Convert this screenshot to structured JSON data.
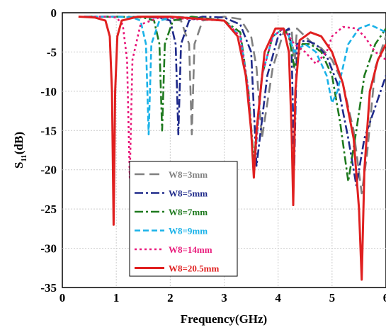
{
  "chart_data": {
    "type": "line",
    "xlabel": "Frequency(GHz)",
    "ylabel": {
      "main": "S",
      "sub": "11",
      "unit": "(dB)"
    },
    "xlim": [
      0,
      6
    ],
    "ylim": [
      -35,
      0
    ],
    "x_ticks": [
      0,
      1,
      2,
      3,
      4,
      5,
      6
    ],
    "x_tick_labels": [
      "0",
      "1",
      "2",
      "3",
      "4",
      "5",
      "6"
    ],
    "y_ticks": [
      0,
      -5,
      -10,
      -15,
      -20,
      -25,
      -30,
      -35
    ],
    "y_tick_labels": [
      "0",
      "-5",
      "-10",
      "-15",
      "-20",
      "-25",
      "-30",
      "-35"
    ],
    "grid": true,
    "legend_position": "bottom-left",
    "series": [
      {
        "name": "W8=3mm",
        "color": "#808080",
        "dash": "long-dash",
        "x": [
          0.4,
          1.0,
          1.8,
          2.2,
          2.35,
          2.4,
          2.45,
          2.6,
          3.0,
          3.3,
          3.5,
          3.6,
          3.7,
          3.9,
          4.1,
          4.25,
          4.3,
          4.35,
          4.5,
          4.65,
          4.8,
          5.0,
          5.2,
          5.4,
          5.55,
          5.65,
          5.8,
          6.0
        ],
        "y": [
          -0.5,
          -0.5,
          -0.6,
          -1.0,
          -4.0,
          -15.5,
          -4.0,
          -1.0,
          -0.5,
          -0.8,
          -3.0,
          -7.0,
          -16.0,
          -7.0,
          -2.5,
          -2.0,
          -7.0,
          -2.0,
          -3.0,
          -4.0,
          -4.5,
          -6.0,
          -9.0,
          -15.0,
          -23.0,
          -18.0,
          -7.0,
          -3.0
        ]
      },
      {
        "name": "W8=5mm",
        "color": "#1f2a8a",
        "dash": "dash-dot",
        "x": [
          0.4,
          1.0,
          1.8,
          2.0,
          2.1,
          2.15,
          2.2,
          2.35,
          2.6,
          3.0,
          3.3,
          3.5,
          3.6,
          3.8,
          4.0,
          4.2,
          4.25,
          4.3,
          4.35,
          4.5,
          4.7,
          4.9,
          5.1,
          5.3,
          5.45,
          5.6,
          5.8,
          6.0
        ],
        "y": [
          -0.5,
          -0.5,
          -0.6,
          -1.0,
          -4.0,
          -15.5,
          -4.0,
          -1.0,
          -0.5,
          -0.6,
          -1.5,
          -5.0,
          -19.5,
          -8.0,
          -3.0,
          -2.0,
          -5.0,
          -19.5,
          -4.0,
          -3.5,
          -4.0,
          -5.5,
          -9.0,
          -16.0,
          -22.0,
          -16.0,
          -12.0,
          -8.0
        ]
      },
      {
        "name": "W8=7mm",
        "color": "#1f7a1f",
        "dash": "dash-dot",
        "x": [
          0.4,
          1.0,
          1.5,
          1.7,
          1.8,
          1.85,
          1.9,
          2.05,
          2.4,
          3.0,
          3.3,
          3.45,
          3.55,
          3.7,
          3.9,
          4.1,
          4.2,
          4.3,
          4.45,
          4.6,
          4.8,
          5.0,
          5.15,
          5.3,
          5.45,
          5.6,
          5.8,
          6.0
        ],
        "y": [
          -0.5,
          -0.5,
          -0.6,
          -1.0,
          -4.0,
          -15.0,
          -4.0,
          -1.0,
          -0.5,
          -1.0,
          -2.5,
          -10.0,
          -19.0,
          -8.0,
          -3.0,
          -2.0,
          -3.0,
          -7.0,
          -4.0,
          -4.0,
          -5.0,
          -8.0,
          -14.0,
          -21.5,
          -15.0,
          -8.0,
          -4.0,
          -2.0
        ]
      },
      {
        "name": "W8=9mm",
        "color": "#1ab2e8",
        "dash": "dash",
        "x": [
          0.4,
          1.0,
          1.3,
          1.45,
          1.55,
          1.6,
          1.65,
          1.8,
          2.1,
          3.0,
          3.3,
          3.45,
          3.55,
          3.7,
          3.9,
          4.1,
          4.2,
          4.3,
          4.5,
          4.7,
          4.9,
          5.0,
          5.1,
          5.3,
          5.5,
          5.7,
          6.0
        ],
        "y": [
          -0.5,
          -0.5,
          -0.6,
          -1.0,
          -4.0,
          -15.5,
          -4.0,
          -1.0,
          -0.5,
          -1.0,
          -3.0,
          -10.0,
          -20.5,
          -8.0,
          -3.0,
          -2.0,
          -3.0,
          -5.0,
          -4.0,
          -5.0,
          -8.0,
          -11.5,
          -10.0,
          -4.0,
          -2.0,
          -1.5,
          -2.5
        ]
      },
      {
        "name": "W8=14mm",
        "color": "#e8187a",
        "dash": "dot",
        "x": [
          0.4,
          0.8,
          1.0,
          1.12,
          1.2,
          1.25,
          1.3,
          1.45,
          1.8,
          3.0,
          3.3,
          3.45,
          3.55,
          3.7,
          3.9,
          4.1,
          4.2,
          4.3,
          4.5,
          4.7,
          4.9,
          5.0,
          5.2,
          5.45,
          5.6,
          5.8,
          6.0
        ],
        "y": [
          -0.5,
          -0.5,
          -0.6,
          -1.5,
          -6.0,
          -21.0,
          -6.0,
          -1.5,
          -0.6,
          -1.0,
          -3.0,
          -10.0,
          -20.5,
          -8.0,
          -3.0,
          -2.0,
          -3.0,
          -4.0,
          -5.0,
          -6.5,
          -5.0,
          -3.0,
          -1.8,
          -2.0,
          -3.0,
          -5.0,
          -6.0
        ]
      },
      {
        "name": "W8=20.5mm",
        "color": "#e02020",
        "dash": "solid",
        "x": [
          0.3,
          0.6,
          0.8,
          0.88,
          0.92,
          0.95,
          0.98,
          1.02,
          1.1,
          1.4,
          2.0,
          3.0,
          3.25,
          3.4,
          3.5,
          3.55,
          3.6,
          3.75,
          3.95,
          4.1,
          4.2,
          4.25,
          4.28,
          4.32,
          4.4,
          4.6,
          4.8,
          5.0,
          5.2,
          5.4,
          5.5,
          5.55,
          5.6,
          5.7,
          5.85,
          6.0
        ],
        "y": [
          -0.5,
          -0.6,
          -1.0,
          -3.0,
          -10.0,
          -27.0,
          -10.0,
          -3.0,
          -1.0,
          -0.5,
          -0.5,
          -1.0,
          -3.0,
          -8.0,
          -15.0,
          -21.0,
          -15.0,
          -5.0,
          -2.0,
          -2.0,
          -5.0,
          -15.0,
          -24.5,
          -10.0,
          -3.5,
          -2.5,
          -3.0,
          -5.0,
          -9.0,
          -16.0,
          -25.0,
          -34.0,
          -20.0,
          -10.0,
          -6.0,
          -4.0
        ]
      }
    ]
  }
}
